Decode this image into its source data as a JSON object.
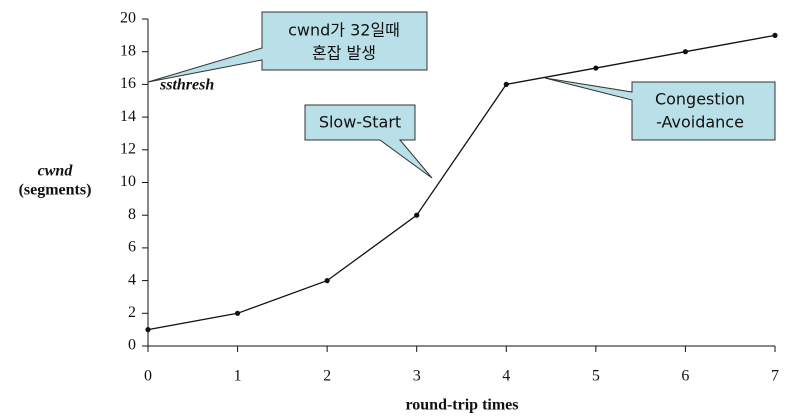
{
  "chart_data": {
    "type": "line",
    "x": [
      0,
      1,
      2,
      3,
      4,
      5,
      6,
      7
    ],
    "values": [
      1,
      2,
      4,
      8,
      16,
      17,
      18,
      19
    ],
    "color": "#111111",
    "xlim": [
      0,
      7
    ],
    "xticks": [
      0,
      1,
      2,
      3,
      4,
      5,
      6,
      7
    ],
    "ylim": [
      0,
      20
    ],
    "yticks": [
      0,
      2,
      4,
      6,
      8,
      10,
      12,
      14,
      16,
      18,
      20
    ],
    "grid": false,
    "x_label": "round-trip times",
    "y_label": [
      "cwnd",
      "(segments)"
    ],
    "annotations": [
      {
        "lines": [
          "cwnd가 32일때",
          "혼잡 발생"
        ]
      },
      {
        "lines": [
          "Slow-Start"
        ]
      },
      {
        "lines": [
          "Congestion",
          "-Avoidance"
        ]
      },
      {
        "lines": [
          "ssthresh"
        ]
      }
    ]
  }
}
